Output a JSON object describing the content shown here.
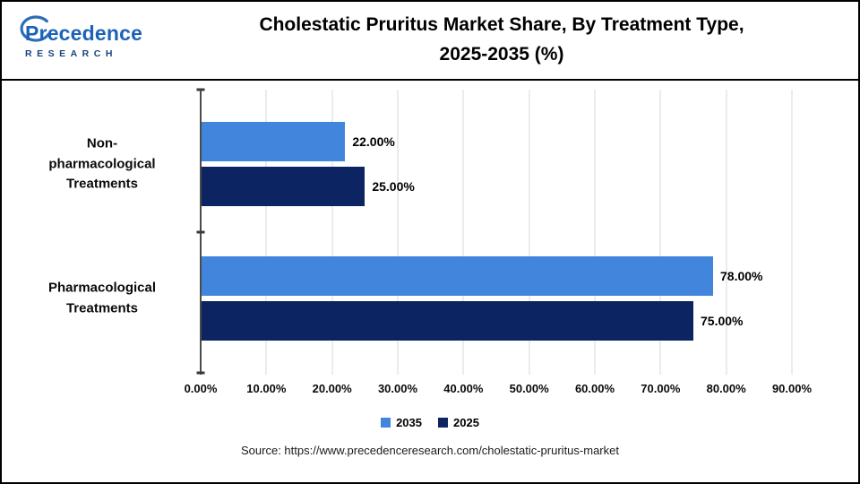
{
  "header": {
    "logo": {
      "line1": "Precedence",
      "line2": "RESEARCH"
    },
    "title_line1": "Cholestatic Pruritus Market Share, By Treatment Type,",
    "title_line2": "2025-2035 (%)"
  },
  "chart_data": {
    "type": "bar",
    "orientation": "horizontal",
    "title": "Cholestatic Pruritus Market Share, By Treatment Type, 2025-2035 (%)",
    "categories": [
      "Non-pharmacological Treatments",
      "Pharmacological Treatments"
    ],
    "series": [
      {
        "name": "2035",
        "color": "#4285DD",
        "values": [
          22,
          78
        ],
        "labels": [
          "22.00%",
          "78.00%"
        ]
      },
      {
        "name": "2025",
        "color": "#0D2463",
        "values": [
          25,
          75
        ],
        "labels": [
          "25.00%",
          "75.00%"
        ]
      }
    ],
    "xmax": 90,
    "x_ticks": [
      "0.00%",
      "10.00%",
      "20.00%",
      "30.00%",
      "40.00%",
      "50.00%",
      "60.00%",
      "70.00%",
      "80.00%",
      "90.00%"
    ],
    "grid": true,
    "legend_position": "bottom"
  },
  "footer": {
    "source": "Source: https://www.precedenceresearch.com/cholestatic-pruritus-market"
  }
}
